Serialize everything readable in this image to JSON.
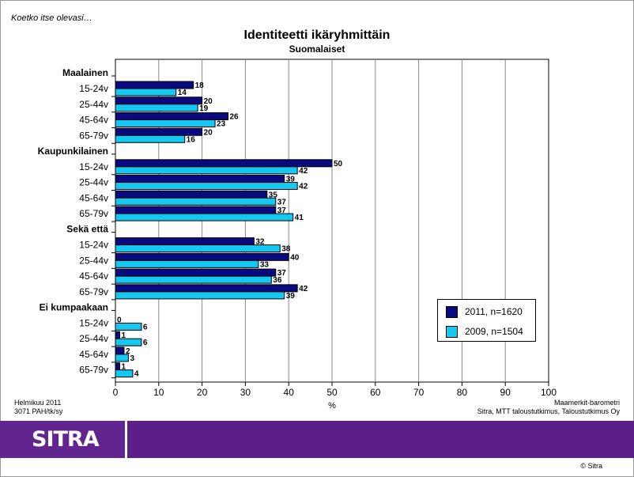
{
  "note": "Koetko itse olevasi…",
  "colors": {
    "s2011": "#0a0a80",
    "s2009": "#16c8f0",
    "brand": "#5b1f87"
  },
  "chart_data": {
    "type": "bar",
    "orientation": "horizontal",
    "title": "Identiteetti ikäryhmittäin",
    "subtitle": "Suomalaiset",
    "xlabel": "%",
    "xlim": [
      0,
      100
    ],
    "xticks": [
      "0",
      "10",
      "20",
      "30",
      "40",
      "50",
      "60",
      "70",
      "80",
      "90",
      "100"
    ],
    "groups": [
      {
        "name": "Maalainen",
        "categories": [
          "15-24v",
          "25-44v",
          "45-64v",
          "65-79v"
        ]
      },
      {
        "name": "Kaupunkilainen",
        "categories": [
          "15-24v",
          "25-44v",
          "45-64v",
          "65-79v"
        ]
      },
      {
        "name": "Sekä että",
        "categories": [
          "15-24v",
          "25-44v",
          "45-64v",
          "65-79v"
        ]
      },
      {
        "name": "Ei kumpaakaan",
        "categories": [
          "15-24v",
          "25-44v",
          "45-64v",
          "65-79v"
        ]
      }
    ],
    "series": [
      {
        "name": "2011, n=1620",
        "values": [
          18,
          20,
          26,
          20,
          50,
          39,
          35,
          37,
          32,
          40,
          37,
          42,
          0,
          1,
          2,
          1
        ]
      },
      {
        "name": "2009, n=1504",
        "values": [
          14,
          19,
          23,
          16,
          42,
          42,
          37,
          41,
          38,
          33,
          36,
          39,
          6,
          6,
          3,
          4
        ]
      }
    ],
    "legend": "right-inside",
    "grid": true
  },
  "footer": {
    "left1": "Helmikuu 2011",
    "left2": "3071 PAH/tk/sy",
    "right1": "Maamerkit-barometri",
    "right2": "Sitra, MTT taloustutkimus, Taloustutkimus Oy"
  },
  "brand": {
    "logo": "SITRA",
    "copyright": "© Sitra"
  }
}
